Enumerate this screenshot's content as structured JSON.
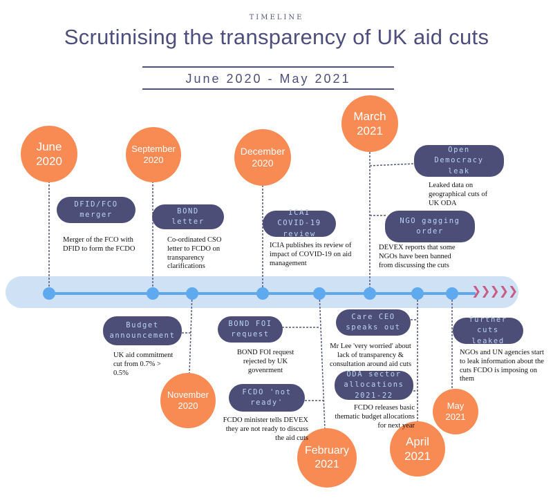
{
  "header": {
    "kicker": "TIMELINE",
    "title": "Scrutinising the transparency of UK aid cuts",
    "subtitle": "June 2020 - May 2021"
  },
  "colors": {
    "accent_orange": "#f88b53",
    "pill_navy": "#4c4e78",
    "pill_text": "#b9d4f5",
    "axis_blue": "#61a8ea",
    "band": "#cfe1f4",
    "arrow_pink": "#c85c84"
  },
  "months": {
    "june": {
      "month": "June",
      "year": "2020"
    },
    "september": {
      "month": "September",
      "year": "2020"
    },
    "december": {
      "month": "December",
      "year": "2020"
    },
    "march": {
      "month": "March",
      "year": "2021"
    },
    "november": {
      "month": "November",
      "year": "2020"
    },
    "february": {
      "month": "February",
      "year": "2021"
    },
    "april": {
      "month": "April",
      "year": "2021"
    },
    "may": {
      "month": "May",
      "year": "2021"
    }
  },
  "events": {
    "dfid_merger": {
      "label": "DFID/FCO merger",
      "text": "Merger of the FCO with DFID to form the FCDO"
    },
    "bond_letter": {
      "label": "BOND letter",
      "text": "Co-ordinated CSO letter to FCDO on transparency clarifications"
    },
    "icai_review": {
      "label": "ICAI COVID-19 review",
      "text": "ICIA publishes its review of impact of  COVID-19 on aid management"
    },
    "open_democracy": {
      "label": "Open Democracy leak",
      "text": "Leaked data on geographical cuts of UK ODA"
    },
    "ngo_gagging": {
      "label": "NGO gagging order",
      "text": "DEVEX reports that some NGOs have been banned from discussing the cuts"
    },
    "budget": {
      "label": "Budget announcement",
      "text": "UK aid commitment cut from 0.7% > 0.5%"
    },
    "bond_foi": {
      "label": "BOND FOI request",
      "text": "BOND FOI request rejected by UK govenrment"
    },
    "fcdo_not_ready": {
      "label": "FCDO 'not ready'",
      "text": "FCDO minister tells DEVEX they are not ready to discuss the aid cuts"
    },
    "care_ceo": {
      "label": "Care CEO speaks out",
      "text": "Mr Lee 'very worried' about lack of transparency & consultation around aid cuts"
    },
    "oda_allocations": {
      "label": "ODA sector allocations 2021-22",
      "text": "FCDO releases basic thematic budget allocations for next year"
    },
    "further_cuts": {
      "label": "further cuts leaked",
      "text": "NGOs and UN agencies start to leak information about the cuts FCDO is imposing on them"
    }
  }
}
